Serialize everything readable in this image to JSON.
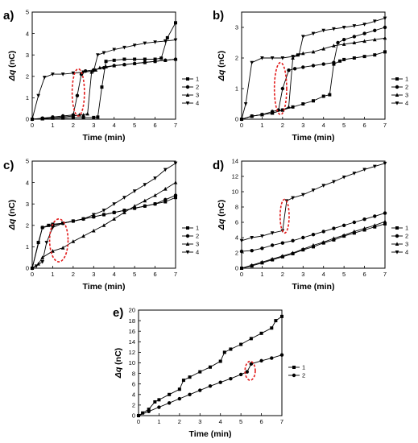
{
  "chart_data": [
    {
      "panel": "a)",
      "type": "line",
      "xlabel": "Time (min)",
      "ylabel_symbol": "Δq",
      "ylabel_unit": " (nC)",
      "xlim": [
        0,
        7
      ],
      "xticks": [
        0,
        1,
        2,
        3,
        4,
        5,
        6,
        7
      ],
      "ylim": [
        0,
        5
      ],
      "yticks": [
        0,
        1,
        2,
        3,
        4,
        5
      ],
      "highlight": {
        "x": 2.25,
        "y": 1.25,
        "rx": 0.3,
        "ry": 1.1
      },
      "series": [
        {
          "name": "1",
          "marker": "square",
          "x": [
            0,
            0.5,
            1,
            1.5,
            2,
            2.5,
            3,
            3.2,
            3.4,
            3.6,
            4,
            4.5,
            5,
            5.5,
            6,
            6.3,
            6.6,
            7
          ],
          "y": [
            0,
            0.03,
            0.05,
            0.05,
            0.07,
            0.08,
            0.08,
            0.1,
            1.5,
            2.7,
            2.75,
            2.8,
            2.8,
            2.8,
            2.8,
            2.85,
            3.8,
            4.5
          ]
        },
        {
          "name": "2",
          "marker": "circle",
          "x": [
            0,
            0.5,
            1,
            1.5,
            2,
            2.2,
            2.4,
            2.6,
            3,
            3.5,
            4,
            4.5,
            5,
            5.5,
            6,
            6.5,
            7
          ],
          "y": [
            0,
            0.05,
            0.1,
            0.15,
            0.2,
            1.1,
            2.1,
            2.25,
            2.3,
            2.4,
            2.5,
            2.55,
            2.6,
            2.65,
            2.7,
            2.75,
            2.8
          ]
        },
        {
          "name": "3",
          "marker": "triangle-up",
          "x": [
            0,
            0.5,
            1,
            1.5,
            2,
            2.3,
            2.5,
            2.7,
            2.9,
            3.1,
            3.3,
            3.6,
            4,
            4.5,
            5,
            5.5,
            6,
            6.5,
            7
          ],
          "y": [
            0,
            0.02,
            0.05,
            0.1,
            0.15,
            0.2,
            0.2,
            0.25,
            2.2,
            2.3,
            2.4,
            2.45,
            2.5,
            2.55,
            2.6,
            2.65,
            2.7,
            2.75,
            2.8
          ]
        },
        {
          "name": "4",
          "marker": "triangle-down",
          "x": [
            0,
            0.3,
            0.6,
            1,
            1.5,
            2,
            2.5,
            3,
            3.2,
            3.5,
            4,
            4.5,
            5,
            5.5,
            6,
            6.5,
            7
          ],
          "y": [
            0,
            1.1,
            1.95,
            2.1,
            2.1,
            2.15,
            2.2,
            2.25,
            3.0,
            3.1,
            3.25,
            3.35,
            3.45,
            3.55,
            3.6,
            3.65,
            3.7
          ]
        }
      ]
    },
    {
      "panel": "b)",
      "type": "line",
      "xlabel": "Time (min)",
      "ylabel_symbol": "Δq",
      "ylabel_unit": " (nC)",
      "xlim": [
        0,
        7
      ],
      "xticks": [
        0,
        1,
        2,
        3,
        4,
        5,
        6,
        7
      ],
      "ylim": [
        0,
        3.5
      ],
      "yticks": [
        0,
        1,
        2,
        3
      ],
      "highlight": {
        "x": 1.9,
        "y": 1.0,
        "rx": 0.3,
        "ry": 0.85
      },
      "series": [
        {
          "name": "1",
          "marker": "square",
          "x": [
            0,
            0.5,
            1,
            1.5,
            2,
            2.5,
            3,
            3.5,
            4,
            4.3,
            4.5,
            4.8,
            5,
            5.5,
            6,
            6.5,
            7
          ],
          "y": [
            0,
            0.1,
            0.15,
            0.2,
            0.3,
            0.4,
            0.5,
            0.6,
            0.75,
            0.8,
            1.8,
            1.9,
            1.95,
            2.0,
            2.05,
            2.1,
            2.2
          ]
        },
        {
          "name": "2",
          "marker": "circle",
          "x": [
            0,
            0.5,
            1,
            1.5,
            1.8,
            2,
            2.3,
            2.6,
            3,
            3.5,
            4,
            4.5,
            4.7,
            5,
            5.5,
            6,
            6.5,
            7
          ],
          "y": [
            0,
            0.1,
            0.15,
            0.25,
            0.3,
            1.0,
            1.6,
            1.65,
            1.7,
            1.75,
            1.8,
            1.85,
            2.5,
            2.6,
            2.7,
            2.8,
            2.9,
            3.0
          ]
        },
        {
          "name": "3",
          "marker": "triangle-up",
          "x": [
            0,
            0.5,
            1,
            1.5,
            2,
            2.3,
            2.5,
            2.7,
            3,
            3.5,
            4,
            4.5,
            5,
            5.5,
            6,
            6.5,
            7
          ],
          "y": [
            0,
            0.1,
            0.15,
            0.2,
            0.3,
            0.4,
            2.0,
            2.1,
            2.15,
            2.2,
            2.3,
            2.4,
            2.45,
            2.5,
            2.55,
            2.6,
            2.65
          ]
        },
        {
          "name": "4",
          "marker": "triangle-down",
          "x": [
            0,
            0.2,
            0.5,
            1,
            1.5,
            2,
            2.5,
            2.8,
            3,
            3.5,
            4,
            4.5,
            5,
            5.5,
            6,
            6.5,
            7
          ],
          "y": [
            0,
            0.5,
            1.85,
            2.0,
            2.0,
            2.0,
            2.05,
            2.1,
            2.7,
            2.8,
            2.9,
            2.95,
            3.0,
            3.05,
            3.1,
            3.2,
            3.3
          ]
        }
      ]
    },
    {
      "panel": "c)",
      "type": "line",
      "xlabel": "Time (min)",
      "ylabel_symbol": "Δq",
      "ylabel_unit": " (nC)",
      "xlim": [
        0,
        7
      ],
      "xticks": [
        0,
        1,
        2,
        3,
        4,
        5,
        6,
        7
      ],
      "ylim": [
        0,
        5
      ],
      "yticks": [
        0,
        1,
        2,
        3,
        4,
        5
      ],
      "highlight": {
        "x": 1.3,
        "y": 1.3,
        "rx": 0.45,
        "ry": 1.0
      },
      "series": [
        {
          "name": "1",
          "marker": "square",
          "x": [
            0,
            0.3,
            0.5,
            0.8,
            1,
            1.5,
            2,
            2.5,
            3,
            3.5,
            4,
            4.5,
            5,
            5.5,
            6,
            6.5,
            7
          ],
          "y": [
            0,
            1.2,
            1.9,
            2.0,
            2.05,
            2.1,
            2.2,
            2.3,
            2.4,
            2.5,
            2.6,
            2.7,
            2.8,
            2.9,
            3.0,
            3.1,
            3.3
          ]
        },
        {
          "name": "2",
          "marker": "circle",
          "x": [
            0,
            0.5,
            1,
            1.5,
            2,
            2.5,
            3,
            3.5,
            4,
            4.5,
            5,
            5.5,
            6,
            6.5,
            7
          ],
          "y": [
            0,
            1.9,
            2.0,
            2.1,
            2.2,
            2.3,
            2.4,
            2.5,
            2.6,
            2.7,
            2.8,
            2.9,
            3.0,
            3.2,
            3.4
          ]
        },
        {
          "name": "3",
          "marker": "triangle-up",
          "x": [
            0,
            0.3,
            0.5,
            1,
            1.5,
            2,
            2.5,
            3,
            3.5,
            4,
            4.5,
            5,
            5.5,
            6,
            6.5,
            7
          ],
          "y": [
            0,
            0.2,
            0.5,
            0.8,
            0.95,
            1.25,
            1.5,
            1.75,
            2.0,
            2.3,
            2.6,
            2.9,
            3.15,
            3.4,
            3.7,
            4.0
          ]
        },
        {
          "name": "4",
          "marker": "triangle-down",
          "x": [
            0,
            0.2,
            0.5,
            0.7,
            1,
            1.5,
            2,
            2.5,
            3,
            3.5,
            4,
            4.5,
            5,
            5.5,
            6,
            6.5,
            7
          ],
          "y": [
            0,
            0.1,
            0.3,
            1.2,
            1.9,
            2.1,
            2.2,
            2.3,
            2.5,
            2.7,
            3.0,
            3.3,
            3.6,
            3.9,
            4.2,
            4.6,
            4.9
          ]
        }
      ]
    },
    {
      "panel": "d)",
      "type": "line",
      "xlabel": "Time (min)",
      "ylabel_symbol": "Δq",
      "ylabel_unit": " (nC)",
      "xlim": [
        0,
        7
      ],
      "xticks": [
        0,
        1,
        2,
        3,
        4,
        5,
        6,
        7
      ],
      "ylim": [
        0,
        14
      ],
      "yticks": [
        0,
        2,
        4,
        6,
        8,
        10,
        12,
        14
      ],
      "highlight": {
        "x": 2.1,
        "y": 6.8,
        "rx": 0.22,
        "ry": 2.2
      },
      "series": [
        {
          "name": "1",
          "marker": "square",
          "x": [
            0,
            0.5,
            1,
            1.5,
            2,
            2.5,
            3,
            3.5,
            4,
            4.5,
            5,
            5.5,
            6,
            6.5,
            7
          ],
          "y": [
            0,
            0.3,
            0.7,
            1.1,
            1.5,
            1.9,
            2.4,
            2.8,
            3.3,
            3.7,
            4.2,
            4.6,
            5.0,
            5.4,
            5.8
          ]
        },
        {
          "name": "2",
          "marker": "circle",
          "x": [
            0,
            0.5,
            1,
            1.5,
            2,
            2.5,
            3,
            3.5,
            4,
            4.5,
            5,
            5.5,
            6,
            6.5,
            7
          ],
          "y": [
            2.2,
            2.3,
            2.6,
            3.0,
            3.3,
            3.6,
            4.0,
            4.4,
            4.8,
            5.2,
            5.6,
            6.0,
            6.4,
            6.8,
            7.2
          ]
        },
        {
          "name": "3",
          "marker": "triangle-up",
          "x": [
            0,
            0.5,
            1,
            1.5,
            2,
            2.5,
            3,
            3.5,
            4,
            4.5,
            5,
            5.5,
            6,
            6.5,
            7
          ],
          "y": [
            0,
            0.4,
            0.8,
            1.2,
            1.6,
            2.0,
            2.5,
            3.0,
            3.4,
            3.9,
            4.3,
            4.8,
            5.2,
            5.6,
            6.1
          ]
        },
        {
          "name": "4",
          "marker": "triangle-down",
          "x": [
            0,
            0.5,
            1,
            1.5,
            2,
            2.2,
            2.5,
            3,
            3.5,
            4,
            4.5,
            5,
            5.5,
            6,
            6.5,
            7
          ],
          "y": [
            3.6,
            4.0,
            4.2,
            4.6,
            4.9,
            8.8,
            9.2,
            9.6,
            10.2,
            10.8,
            11.3,
            11.9,
            12.4,
            12.9,
            13.3,
            13.7
          ]
        }
      ]
    },
    {
      "panel": "e)",
      "type": "line",
      "xlabel": "Time (min)",
      "ylabel_symbol": "Δq",
      "ylabel_unit": " (nC)",
      "xlim": [
        0,
        7
      ],
      "xticks": [
        0,
        1,
        2,
        3,
        4,
        5,
        6,
        7
      ],
      "ylim": [
        0,
        20
      ],
      "yticks": [
        0,
        2,
        4,
        6,
        8,
        10,
        12,
        14,
        16,
        18,
        20
      ],
      "highlight": {
        "x": 5.45,
        "y": 8.5,
        "rx": 0.25,
        "ry": 1.8
      },
      "series": [
        {
          "name": "1",
          "marker": "square",
          "x": [
            0,
            0.2,
            0.5,
            0.8,
            1,
            1.5,
            2,
            2.2,
            2.5,
            3,
            3.5,
            4,
            4.2,
            4.5,
            5,
            5.5,
            6,
            6.5,
            6.7,
            7
          ],
          "y": [
            0,
            0.5,
            1.2,
            2.6,
            3.0,
            4.0,
            5.0,
            6.7,
            7.3,
            8.3,
            9.2,
            10.3,
            12.0,
            12.6,
            13.5,
            14.6,
            15.6,
            16.6,
            18.0,
            18.8
          ]
        },
        {
          "name": "2",
          "marker": "circle",
          "x": [
            0,
            0.5,
            1,
            1.5,
            2,
            2.5,
            3,
            3.5,
            4,
            4.5,
            5,
            5.3,
            5.5,
            6,
            6.5,
            7
          ],
          "y": [
            0,
            0.8,
            1.6,
            2.4,
            3.2,
            4.0,
            4.8,
            5.6,
            6.3,
            7.0,
            7.8,
            8.3,
            9.8,
            10.4,
            10.9,
            11.5
          ]
        }
      ]
    }
  ]
}
